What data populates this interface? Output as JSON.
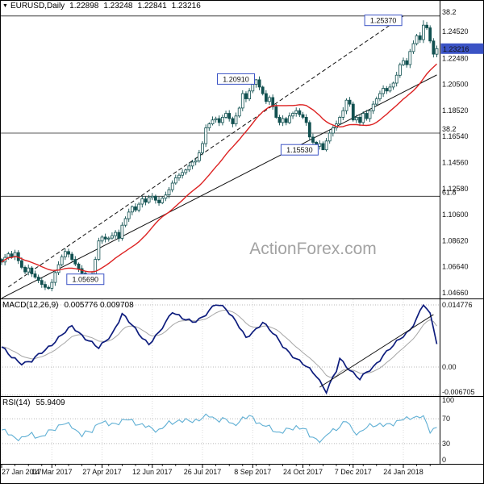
{
  "header": {
    "dropdown_icon": "▼",
    "symbol": "EURUSD,Daily",
    "open": "1.22898",
    "high": "1.23248",
    "low": "1.22841",
    "close": "1.23216"
  },
  "watermark": "ActionForex.com",
  "colors": {
    "candle": "#115050",
    "candle_up_fill": "#ffffff",
    "ma": "#dd2222",
    "macd": "#0d1c7d",
    "macd_signal": "#a6a6a6",
    "rsi": "#5fafd4",
    "annotation": "#3b53c5",
    "price_tag_bg": "#3b53c5",
    "grid": "#c9c9c9",
    "trend": "#111111",
    "frame": "#000000"
  },
  "chart_data": [
    {
      "type": "candlestick",
      "title": "EURUSD Daily",
      "ylim": [
        1.041,
        1.266
      ],
      "x_tick_labels": [
        "27 Jan 2017",
        "14 Mar 2017",
        "27 Apr 2017",
        "12 Jun 2017",
        "26 Jul 2017",
        "8 Sep 2017",
        "24 Oct 2017",
        "7 Dec 2017",
        "24 Jan 2018"
      ],
      "x_tick_indices": [
        0,
        15,
        30,
        45,
        60,
        75,
        90,
        105,
        120
      ],
      "y_axis_ticks": [
        "1.24520",
        "1.22480",
        "1.20500",
        "1.18520",
        "1.16540",
        "1.14560",
        "1.12580",
        "1.10600",
        "1.08620",
        "1.06640",
        "1.04660"
      ],
      "current_price": "1.23216",
      "current_price_value": 1.23216,
      "ma_period": 20,
      "close": [
        1.07,
        1.0735,
        1.0762,
        1.074,
        1.0772,
        1.071,
        1.066,
        1.0625,
        1.0655,
        1.061,
        1.0585,
        1.056,
        1.053,
        1.0508,
        1.05,
        1.0545,
        1.062,
        1.068,
        1.074,
        1.078,
        1.076,
        1.072,
        1.0685,
        1.065,
        1.0615,
        1.058,
        1.0572,
        1.061,
        1.072,
        1.086,
        1.089,
        1.0875,
        1.0882,
        1.09,
        1.0925,
        1.088,
        1.098,
        1.103,
        1.108,
        1.112,
        1.1095,
        1.114,
        1.118,
        1.1155,
        1.119,
        1.12,
        1.117,
        1.115,
        1.1185,
        1.121,
        1.125,
        1.13,
        1.134,
        1.136,
        1.138,
        1.14,
        1.143,
        1.146,
        1.147,
        1.153,
        1.16,
        1.172,
        1.175,
        1.178,
        1.179,
        1.176,
        1.18,
        1.183,
        1.179,
        1.175,
        1.181,
        1.187,
        1.198,
        1.194,
        1.2,
        1.205,
        1.2085,
        1.203,
        1.198,
        1.192,
        1.195,
        1.188,
        1.18,
        1.176,
        1.179,
        1.176,
        1.181,
        1.183,
        1.185,
        1.182,
        1.18,
        1.176,
        1.165,
        1.161,
        1.158,
        1.16,
        1.1553,
        1.162,
        1.168,
        1.172,
        1.175,
        1.18,
        1.185,
        1.193,
        1.19,
        1.178,
        1.18,
        1.176,
        1.183,
        1.179,
        1.185,
        1.19,
        1.194,
        1.198,
        1.202,
        1.2,
        1.203,
        1.206,
        1.212,
        1.22,
        1.223,
        1.22,
        1.23,
        1.236,
        1.242,
        1.239,
        1.25,
        1.248,
        1.238,
        1.228,
        1.2322
      ],
      "annotations": [
        {
          "label": "1.25370",
          "price": 1.2537,
          "box_index": 114,
          "swing_index": 126
        },
        {
          "label": "1.20910",
          "price": 1.2091,
          "box_index": 70,
          "swing_index": 76
        },
        {
          "label": "1.15530",
          "price": 1.1553,
          "box_index": 89,
          "swing_index": 96
        },
        {
          "label": "1.05690",
          "price": 1.0569,
          "box_index": 25,
          "swing_index": 26
        }
      ],
      "fib_levels": [
        {
          "label": "38.2",
          "price": 1.257
        },
        {
          "label": "38.2",
          "price": 1.168
        },
        {
          "label": "61.8",
          "price": 1.12
        }
      ],
      "trendlines": [
        {
          "style": "dashed",
          "from": {
            "index": 2,
            "price": 1.051
          },
          "to": {
            "index": 120,
            "price": 1.257
          }
        },
        {
          "style": "solid",
          "from": {
            "index": 0,
            "price": 1.0425
          },
          "to": {
            "index": 130,
            "price": 1.2122
          }
        }
      ]
    },
    {
      "type": "line",
      "name": "MACD",
      "label": "MACD(12,26,9)",
      "values_label": "0.005776 0.009708",
      "current_macd": 0.005776,
      "current_signal": 0.009708,
      "ylim": [
        -0.0075,
        0.0161
      ],
      "signal_period": 9,
      "axis_ticks": [
        {
          "value": 0.014776,
          "label": "0.014776"
        },
        {
          "value": 0,
          "label": "0.00"
        },
        {
          "value": -0.006705,
          "label": "-0.006705"
        }
      ],
      "points": [
        [
          0,
          0.0048
        ],
        [
          3,
          0.0022
        ],
        [
          6,
          0.001
        ],
        [
          9,
          0.0015
        ],
        [
          13,
          0.004
        ],
        [
          17,
          0.007
        ],
        [
          21,
          0.0096
        ],
        [
          25,
          0.007
        ],
        [
          29,
          0.0044
        ],
        [
          33,
          0.008
        ],
        [
          36,
          0.0125
        ],
        [
          40,
          0.009
        ],
        [
          44,
          0.0054
        ],
        [
          47,
          0.008
        ],
        [
          51,
          0.0134
        ],
        [
          54,
          0.0115
        ],
        [
          57,
          0.0106
        ],
        [
          60,
          0.012
        ],
        [
          64,
          0.0148
        ],
        [
          67,
          0.014
        ],
        [
          70,
          0.011
        ],
        [
          73,
          0.0067
        ],
        [
          76,
          0.009
        ],
        [
          78,
          0.0109
        ],
        [
          81,
          0.008
        ],
        [
          84,
          0.005
        ],
        [
          88,
          0.002
        ],
        [
          91,
          0.0
        ],
        [
          94,
          -0.0019
        ],
        [
          97,
          -0.0058
        ],
        [
          100,
          -0.001
        ],
        [
          101,
          0.0019
        ],
        [
          104,
          -0.0005
        ],
        [
          107,
          -0.0029
        ],
        [
          111,
          0.0
        ],
        [
          114,
          0.0029
        ],
        [
          117,
          0.005
        ],
        [
          119,
          0.0067
        ],
        [
          122,
          0.009
        ],
        [
          124,
          0.0115
        ],
        [
          126,
          0.0148
        ],
        [
          128,
          0.0125
        ],
        [
          129,
          0.0095
        ],
        [
          130,
          0.0058
        ]
      ],
      "trendline": {
        "from": {
          "index": 95,
          "value": -0.0048
        },
        "to": {
          "index": 129,
          "value": 0.0125
        }
      }
    },
    {
      "type": "line",
      "name": "RSI",
      "label": "RSI(14)",
      "value_label": "55.9409",
      "ylim": [
        0,
        100
      ],
      "axis_ticks": [
        {
          "value": 100,
          "label": "100"
        },
        {
          "value": 70,
          "label": "70"
        },
        {
          "value": 30,
          "label": "30"
        },
        {
          "value": 0,
          "label": "0"
        }
      ],
      "levels": [
        70,
        30
      ],
      "points": [
        [
          0,
          52
        ],
        [
          3,
          42
        ],
        [
          6,
          38
        ],
        [
          9,
          45
        ],
        [
          12,
          40
        ],
        [
          15,
          52
        ],
        [
          18,
          62
        ],
        [
          21,
          58
        ],
        [
          24,
          44
        ],
        [
          27,
          50
        ],
        [
          29,
          66
        ],
        [
          32,
          60
        ],
        [
          35,
          65
        ],
        [
          38,
          68
        ],
        [
          41,
          62
        ],
        [
          44,
          55
        ],
        [
          47,
          52
        ],
        [
          50,
          62
        ],
        [
          53,
          68
        ],
        [
          56,
          65
        ],
        [
          59,
          70
        ],
        [
          62,
          74
        ],
        [
          64,
          70
        ],
        [
          67,
          68
        ],
        [
          69,
          60
        ],
        [
          72,
          70
        ],
        [
          75,
          73
        ],
        [
          77,
          62
        ],
        [
          80,
          55
        ],
        [
          83,
          48
        ],
        [
          86,
          52
        ],
        [
          88,
          58
        ],
        [
          90,
          55
        ],
        [
          92,
          42
        ],
        [
          94,
          38
        ],
        [
          96,
          35
        ],
        [
          98,
          48
        ],
        [
          100,
          55
        ],
        [
          102,
          62
        ],
        [
          103,
          66
        ],
        [
          105,
          50
        ],
        [
          107,
          48
        ],
        [
          109,
          55
        ],
        [
          111,
          60
        ],
        [
          113,
          62
        ],
        [
          115,
          58
        ],
        [
          117,
          62
        ],
        [
          119,
          70
        ],
        [
          121,
          68
        ],
        [
          123,
          72
        ],
        [
          125,
          76
        ],
        [
          126,
          72
        ],
        [
          127,
          60
        ],
        [
          128,
          48
        ],
        [
          129,
          52
        ],
        [
          130,
          55.94
        ]
      ]
    }
  ]
}
